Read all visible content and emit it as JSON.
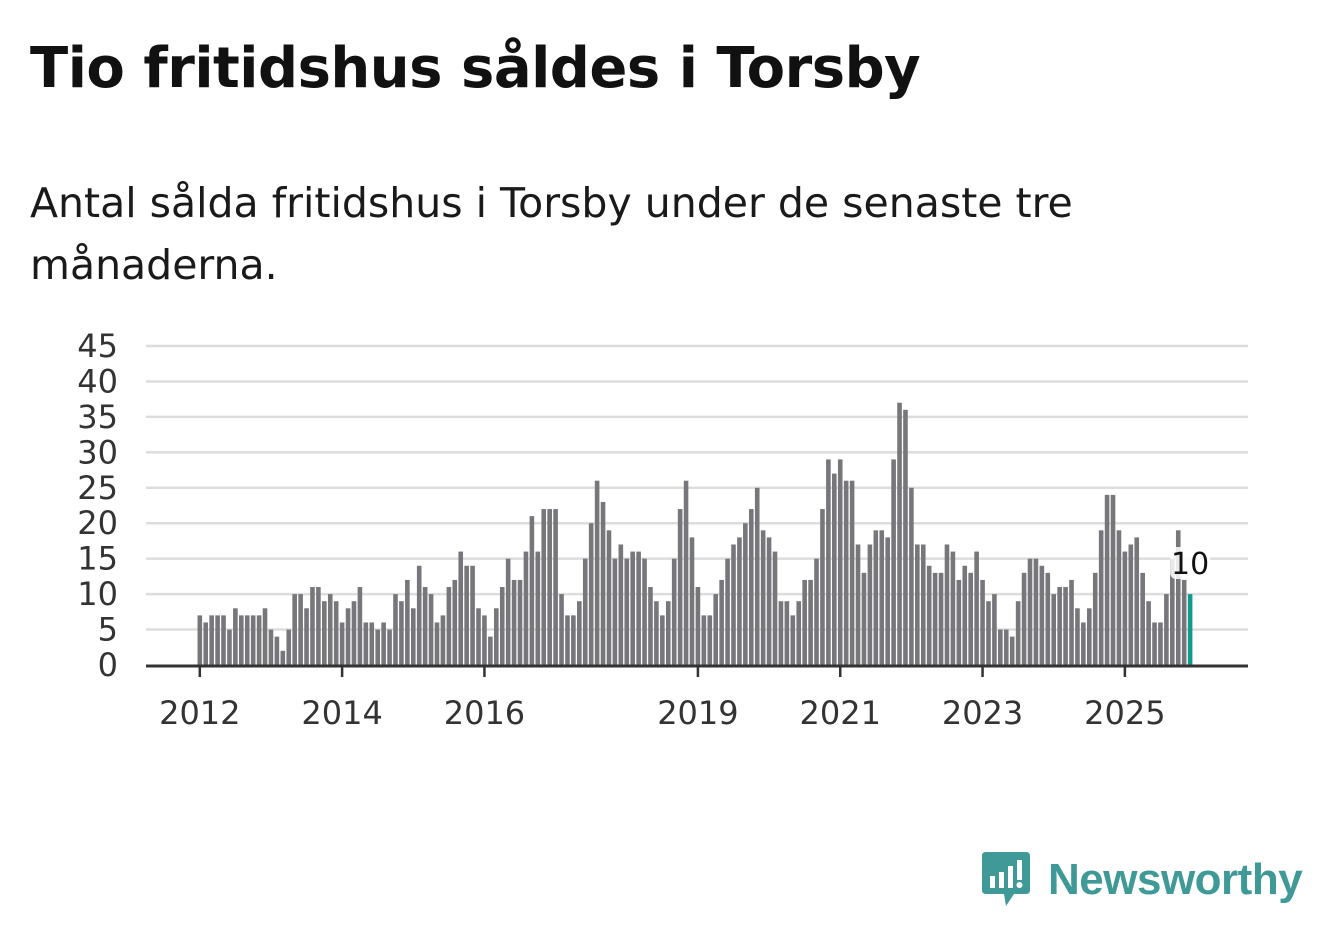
{
  "title": "Tio fritidshus såldes i Torsby",
  "subtitle": "Antal sålda fritidshus i Torsby under de senaste tre månaderna.",
  "brand": {
    "name": "Newsworthy",
    "color": "#3f9a97",
    "icon": "newsworthy-logo-icon"
  },
  "colors": {
    "bar": "#77767b",
    "highlight": "#139a8e",
    "grid": "#dddddd",
    "axis": "#333333"
  },
  "chart_data": {
    "type": "bar",
    "ylim": [
      0,
      45
    ],
    "yticks": [
      0,
      5,
      10,
      15,
      20,
      25,
      30,
      35,
      40,
      45
    ],
    "xticks": [
      {
        "label": "2012",
        "index": 0
      },
      {
        "label": "2014",
        "index": 24
      },
      {
        "label": "2016",
        "index": 48
      },
      {
        "label": "2019",
        "index": 84
      },
      {
        "label": "2021",
        "index": 108
      },
      {
        "label": "2023",
        "index": 132
      },
      {
        "label": "2025",
        "index": 156
      }
    ],
    "highlight_last": true,
    "last_value_label": "10",
    "values": [
      7,
      6,
      7,
      7,
      7,
      5,
      8,
      7,
      7,
      7,
      7,
      8,
      5,
      4,
      2,
      5,
      10,
      10,
      8,
      11,
      11,
      9,
      10,
      9,
      6,
      8,
      9,
      11,
      6,
      6,
      5,
      6,
      5,
      10,
      9,
      12,
      8,
      14,
      11,
      10,
      6,
      7,
      11,
      12,
      16,
      14,
      14,
      8,
      7,
      4,
      8,
      11,
      15,
      12,
      12,
      16,
      21,
      16,
      22,
      22,
      22,
      10,
      7,
      7,
      9,
      15,
      20,
      26,
      23,
      19,
      15,
      17,
      15,
      16,
      16,
      15,
      11,
      9,
      7,
      9,
      15,
      22,
      26,
      18,
      11,
      7,
      7,
      10,
      12,
      15,
      17,
      18,
      20,
      22,
      25,
      19,
      18,
      16,
      9,
      9,
      7,
      9,
      12,
      12,
      15,
      22,
      29,
      27,
      29,
      26,
      26,
      17,
      13,
      17,
      19,
      19,
      18,
      29,
      37,
      36,
      25,
      17,
      17,
      14,
      13,
      13,
      17,
      16,
      12,
      14,
      13,
      16,
      12,
      9,
      10,
      5,
      5,
      4,
      9,
      13,
      15,
      15,
      14,
      13,
      10,
      11,
      11,
      12,
      8,
      6,
      8,
      13,
      19,
      24,
      24,
      19,
      16,
      17,
      18,
      13,
      9,
      6,
      6,
      10,
      15,
      19,
      12,
      10
    ]
  }
}
